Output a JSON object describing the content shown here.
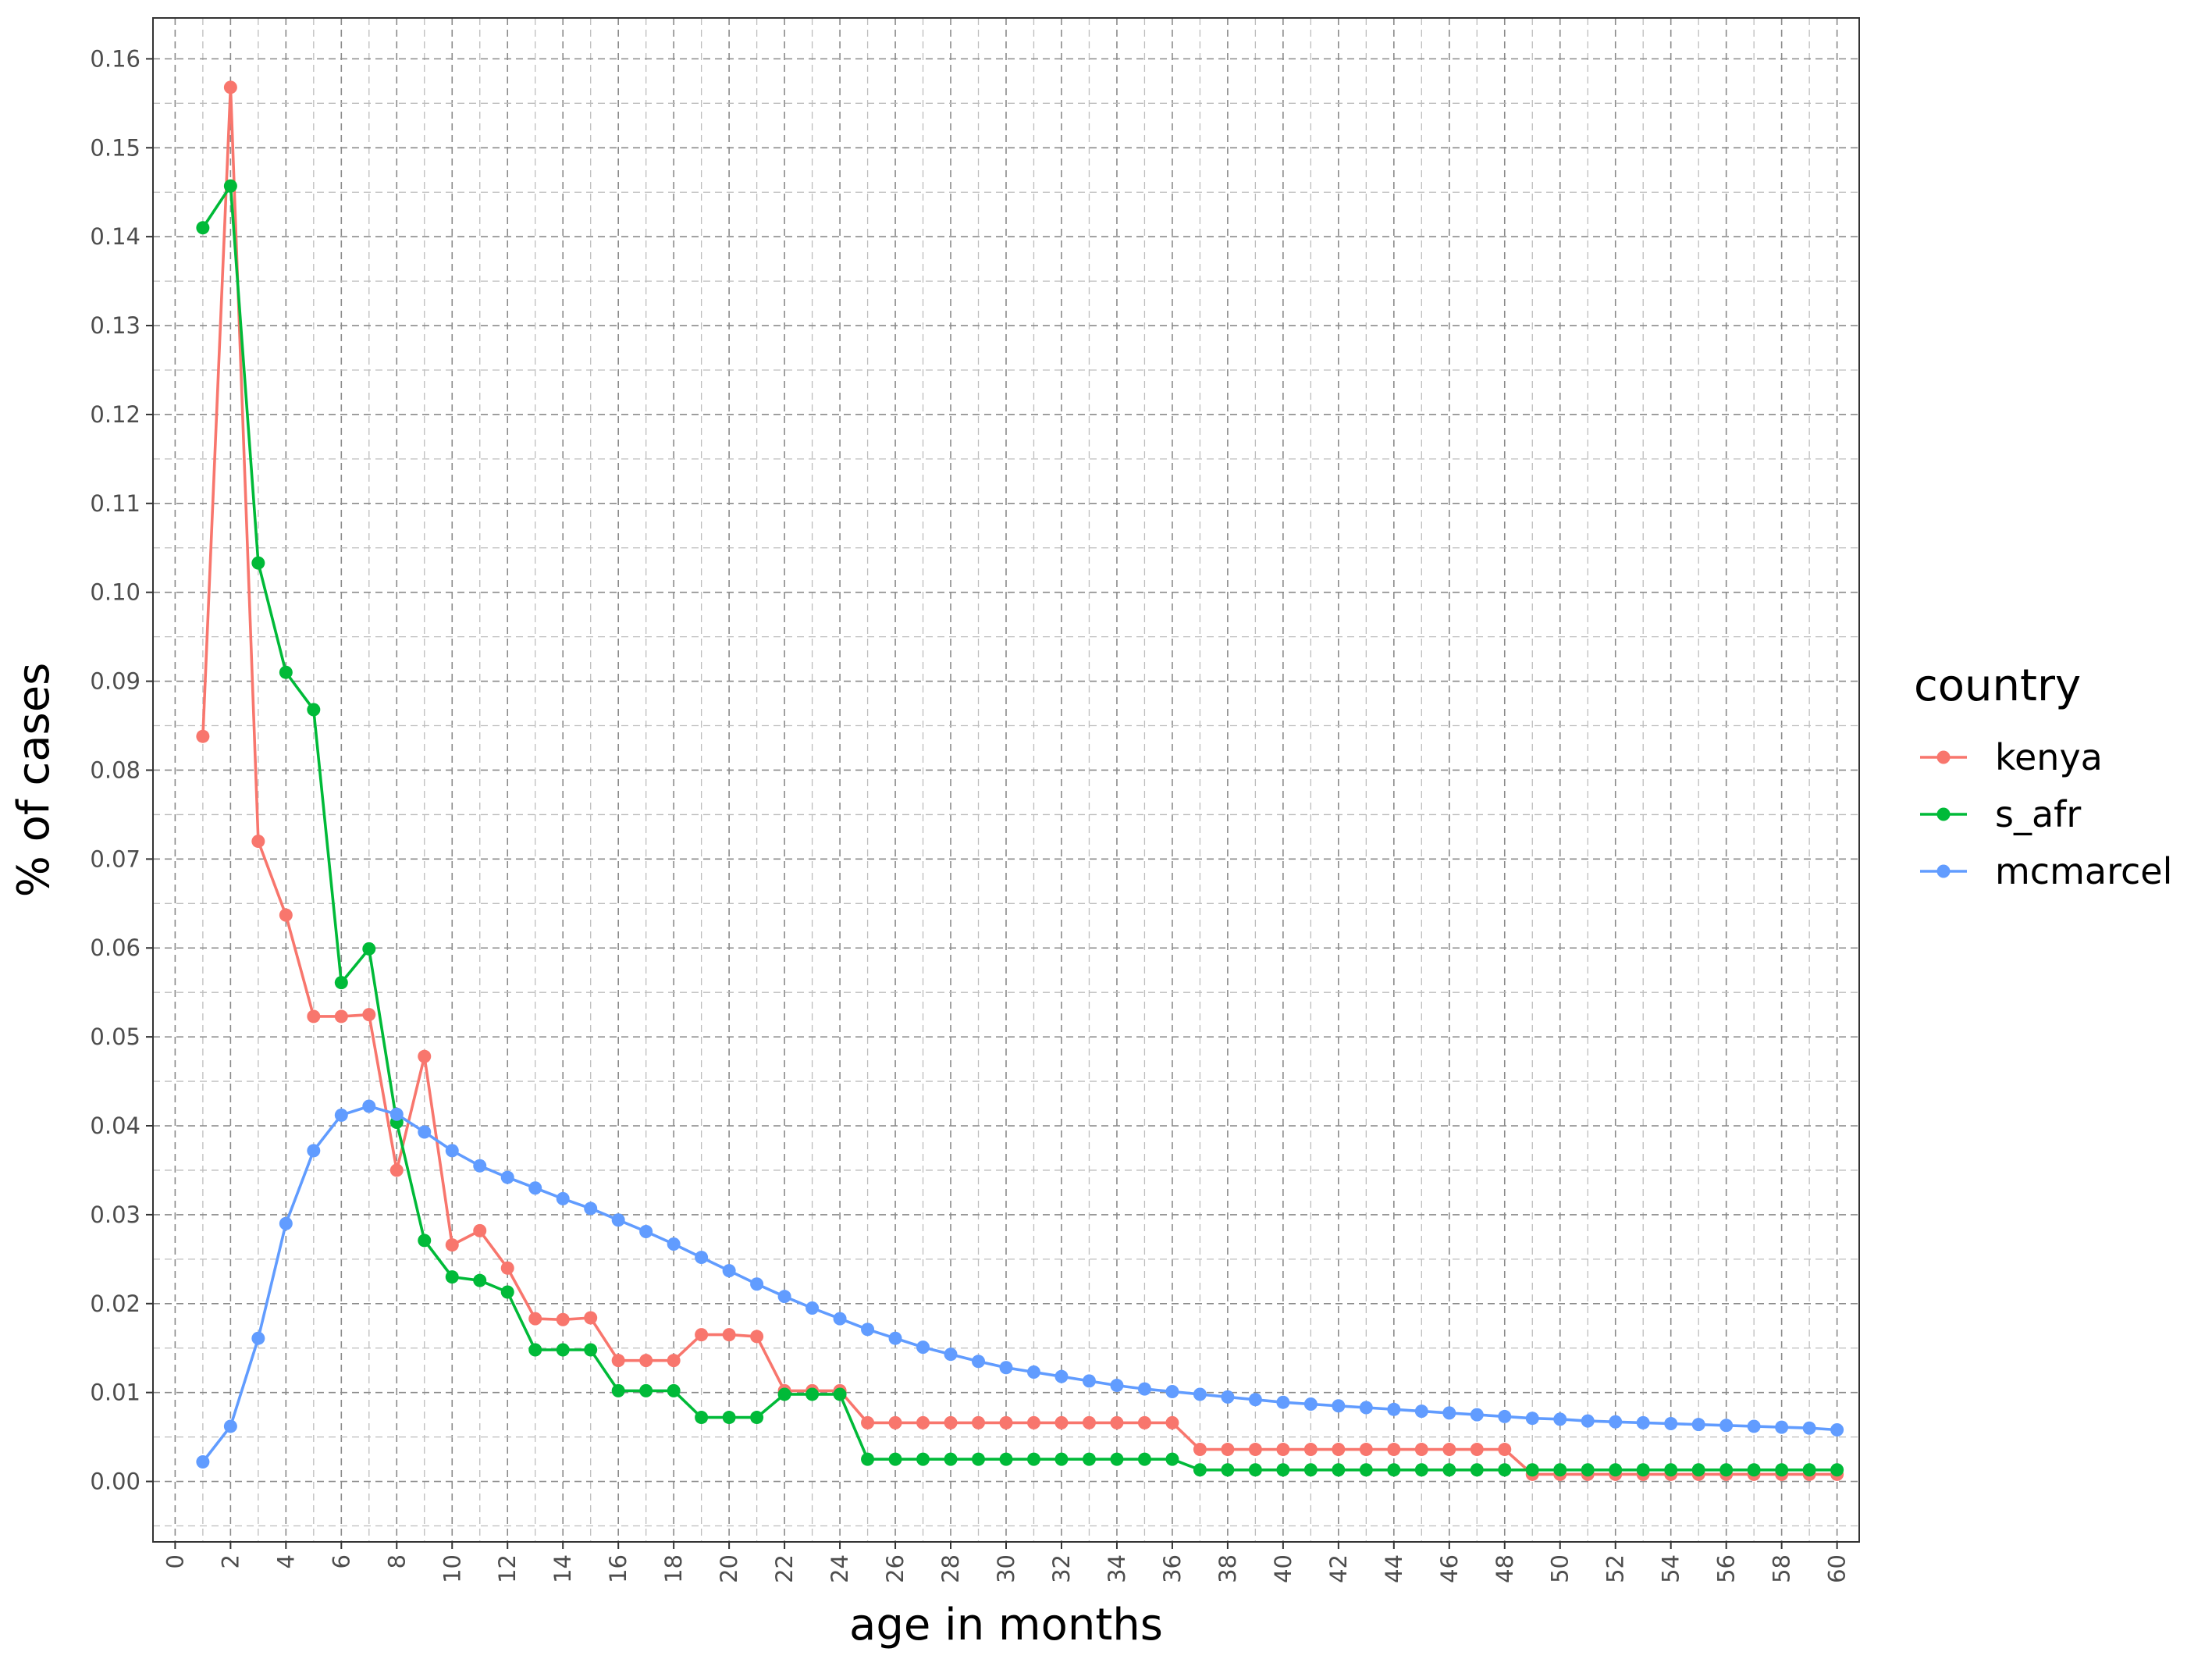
{
  "chart_data": {
    "type": "line",
    "xlabel": "age in months",
    "ylabel": "% of cases",
    "xlim": [
      -0.8,
      60.8
    ],
    "ylim": [
      -0.0068,
      0.1646
    ],
    "x_ticks": [
      0,
      2,
      4,
      6,
      8,
      10,
      12,
      14,
      16,
      18,
      20,
      22,
      24,
      26,
      28,
      30,
      32,
      34,
      36,
      38,
      40,
      42,
      44,
      46,
      48,
      50,
      52,
      54,
      56,
      58,
      60
    ],
    "y_ticks": [
      0.0,
      0.01,
      0.02,
      0.03,
      0.04,
      0.05,
      0.06,
      0.07,
      0.08,
      0.09,
      0.1,
      0.11,
      0.12,
      0.13,
      0.14,
      0.15,
      0.16
    ],
    "y_tick_labels": [
      "0.00",
      "0.01",
      "0.02",
      "0.03",
      "0.04",
      "0.05",
      "0.06",
      "0.07",
      "0.08",
      "0.09",
      "0.10",
      "0.11",
      "0.12",
      "0.13",
      "0.14",
      "0.15",
      "0.16"
    ],
    "grid": true,
    "legend": {
      "title": "country",
      "position": "right"
    },
    "x": [
      1,
      2,
      3,
      4,
      5,
      6,
      7,
      8,
      9,
      10,
      11,
      12,
      13,
      14,
      15,
      16,
      17,
      18,
      19,
      20,
      21,
      22,
      23,
      24,
      25,
      26,
      27,
      28,
      29,
      30,
      31,
      32,
      33,
      34,
      35,
      36,
      37,
      38,
      39,
      40,
      41,
      42,
      43,
      44,
      45,
      46,
      47,
      48,
      49,
      50,
      51,
      52,
      53,
      54,
      55,
      56,
      57,
      58,
      59,
      60
    ],
    "series": [
      {
        "name": "kenya",
        "color": "#F8766D",
        "values": [
          0.0838,
          0.1568,
          0.072,
          0.0637,
          0.0523,
          0.0523,
          0.0525,
          0.035,
          0.0478,
          0.0266,
          0.0282,
          0.024,
          0.0183,
          0.0182,
          0.0184,
          0.0136,
          0.0136,
          0.0136,
          0.0165,
          0.0165,
          0.0163,
          0.0102,
          0.0102,
          0.0102,
          0.0066,
          0.0066,
          0.0066,
          0.0066,
          0.0066,
          0.0066,
          0.0066,
          0.0066,
          0.0066,
          0.0066,
          0.0066,
          0.0066,
          0.0036,
          0.0036,
          0.0036,
          0.0036,
          0.0036,
          0.0036,
          0.0036,
          0.0036,
          0.0036,
          0.0036,
          0.0036,
          0.0036,
          0.0008,
          0.0008,
          0.0008,
          0.0008,
          0.0008,
          0.0008,
          0.0008,
          0.0008,
          0.0008,
          0.0008,
          0.0008,
          0.0008
        ]
      },
      {
        "name": "s_afr",
        "color": "#00BA38",
        "values": [
          0.141,
          0.1457,
          0.1033,
          0.091,
          0.0868,
          0.0561,
          0.0599,
          0.0404,
          0.0271,
          0.023,
          0.0226,
          0.0213,
          0.0148,
          0.0148,
          0.0148,
          0.0102,
          0.0102,
          0.0102,
          0.0072,
          0.0072,
          0.0072,
          0.0098,
          0.0098,
          0.0098,
          0.0025,
          0.0025,
          0.0025,
          0.0025,
          0.0025,
          0.0025,
          0.0025,
          0.0025,
          0.0025,
          0.0025,
          0.0025,
          0.0025,
          0.0013,
          0.0013,
          0.0013,
          0.0013,
          0.0013,
          0.0013,
          0.0013,
          0.0013,
          0.0013,
          0.0013,
          0.0013,
          0.0013,
          0.0013,
          0.0013,
          0.0013,
          0.0013,
          0.0013,
          0.0013,
          0.0013,
          0.0013,
          0.0013,
          0.0013,
          0.0013,
          0.0013
        ]
      },
      {
        "name": "mcmarcel",
        "color": "#619CFF",
        "values": [
          0.0022,
          0.0062,
          0.0161,
          0.029,
          0.0372,
          0.0412,
          0.0422,
          0.0413,
          0.0393,
          0.0372,
          0.0355,
          0.0342,
          0.033,
          0.0318,
          0.0307,
          0.0294,
          0.0281,
          0.0267,
          0.0252,
          0.0237,
          0.0222,
          0.0208,
          0.0195,
          0.0183,
          0.0171,
          0.0161,
          0.0151,
          0.0143,
          0.0135,
          0.0128,
          0.0123,
          0.0118,
          0.0113,
          0.0108,
          0.0104,
          0.0101,
          0.0098,
          0.0095,
          0.0092,
          0.0089,
          0.0087,
          0.0085,
          0.0083,
          0.0081,
          0.0079,
          0.0077,
          0.0075,
          0.0073,
          0.0071,
          0.007,
          0.0068,
          0.0067,
          0.0066,
          0.0065,
          0.0064,
          0.0063,
          0.0062,
          0.0061,
          0.006,
          0.0058
        ]
      }
    ]
  }
}
